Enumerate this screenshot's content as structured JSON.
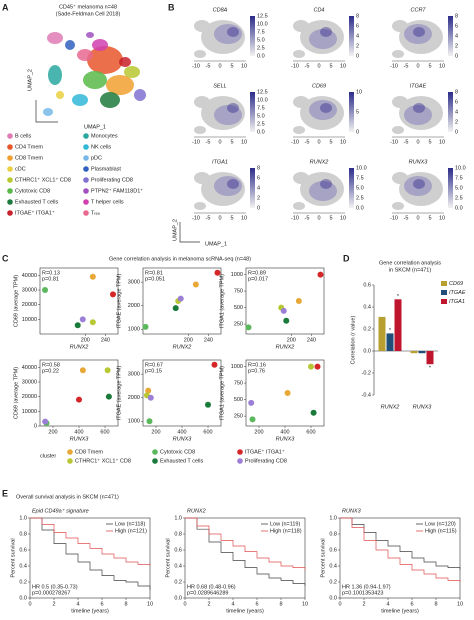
{
  "a": {
    "label": "A",
    "title": "CD45⁺ melanoma n=48",
    "subtitle": "(Sade-Feldman Cell 2018)",
    "xlabel": "UMAP_1",
    "ylabel": "UMAP_2",
    "legend": [
      {
        "name": "B cells",
        "color": "#e07bb5"
      },
      {
        "name": "CD4 Tmem",
        "color": "#e8562a"
      },
      {
        "name": "CD8 Tmem",
        "color": "#f0a030"
      },
      {
        "name": "cDC",
        "color": "#e8d040"
      },
      {
        "name": "CTHRC1⁺ XCL1⁺ CD8",
        "color": "#b8c830"
      },
      {
        "name": "Cytotoxic CD8",
        "color": "#58b848"
      },
      {
        "name": "Exhausted T cells",
        "color": "#1e7a3c"
      },
      {
        "name": "ITGAE⁺ ITGA1⁺",
        "color": "#c8202a"
      },
      {
        "name": "Monocytes",
        "color": "#2aa8a0"
      },
      {
        "name": "NK cells",
        "color": "#30b8d8"
      },
      {
        "name": "pDC",
        "color": "#78b8e8"
      },
      {
        "name": "Plasmablast",
        "color": "#3060c0"
      },
      {
        "name": "Proliferating CD8",
        "color": "#8070d0"
      },
      {
        "name": "PTPN2⁺ FAM118D1⁺",
        "color": "#a050c0"
      },
      {
        "name": "T helper cells",
        "color": "#d040b0"
      },
      {
        "name": "Tᵣₑ₉",
        "color": "#e86890"
      }
    ]
  },
  "b": {
    "label": "B",
    "xticks": [
      "-10",
      "-5",
      "0",
      "5",
      "10"
    ],
    "xlabel": "UMAP_1",
    "ylabel": "UMAP_2",
    "genes": [
      {
        "name": "CD8A",
        "colorbar": [
          "12.5",
          "10.0",
          "7.5",
          "5.0",
          "2.5",
          "0.0"
        ]
      },
      {
        "name": "CD4",
        "colorbar": [
          "8",
          "6",
          "4",
          "2",
          "0"
        ]
      },
      {
        "name": "CCR7",
        "colorbar": [
          "8",
          "6",
          "4",
          "2",
          "0"
        ]
      },
      {
        "name": "SELL",
        "colorbar": [
          "12.5",
          "10.0",
          "7.5",
          "5.0",
          "2.5",
          "0.0"
        ]
      },
      {
        "name": "CD69",
        "colorbar": [
          "10",
          "5",
          "0"
        ]
      },
      {
        "name": "ITGAE",
        "colorbar": [
          "8",
          "6",
          "4",
          "2",
          "0"
        ]
      },
      {
        "name": "ITGA1",
        "colorbar": [
          "8",
          "6",
          "4",
          "2",
          "0"
        ]
      },
      {
        "name": "RUNX2",
        "colorbar": [
          "10.0",
          "7.5",
          "5.0",
          "2.5",
          "0.0"
        ]
      },
      {
        "name": "RUNX3",
        "colorbar": [
          "10.0",
          "7.5",
          "5.0",
          "2.5",
          "0.0"
        ]
      }
    ]
  },
  "c": {
    "label": "C",
    "title": "Gene correlation analysis in melanoma scRNA-seq (n=48)",
    "legend_title": "cluster",
    "legend": [
      {
        "name": "CD8 Tmem",
        "color": "#e8a838"
      },
      {
        "name": "CTHRC1⁺ XCL1⁺ CD8",
        "color": "#b8c834"
      },
      {
        "name": "Cytotoxic CD8",
        "color": "#5cb85c"
      },
      {
        "name": "Exhausted T cells",
        "color": "#1a7a3a"
      },
      {
        "name": "ITGAE⁺ ITGA1⁺",
        "color": "#d62728"
      },
      {
        "name": "Proliferating CD8",
        "color": "#9b7fd6"
      }
    ],
    "plots": [
      {
        "xlabel": "RUNX2",
        "ylabel": "CD69 (average TPM)",
        "stats": [
          "R=0.13",
          "p=0.81"
        ],
        "xlim": [
          110,
          265
        ],
        "xticks": [
          200,
          240
        ],
        "ylim": [
          0,
          45000
        ],
        "yticks": [
          10000,
          20000,
          30000,
          40000
        ],
        "x": [
          215,
          215,
          120,
          185,
          255,
          195
        ],
        "y": [
          39000,
          8000,
          30000,
          6000,
          27000,
          10000
        ]
      },
      {
        "xlabel": "RUNX2",
        "ylabel": "ITGAE (average TPM)",
        "stats": [
          "R=0.81",
          "p=0.051"
        ],
        "xlim": [
          110,
          265
        ],
        "xticks": [
          200,
          240
        ],
        "ylim": [
          800,
          3600
        ],
        "yticks": [
          1000,
          2000,
          3000
        ],
        "x": [
          215,
          180,
          115,
          175,
          258,
          185
        ],
        "y": [
          2900,
          2200,
          1100,
          1900,
          3400,
          2300
        ]
      },
      {
        "xlabel": "RUNX2",
        "ylabel": "ITGA1 (average TPM)",
        "stats": [
          "R=0.89",
          "p=0.017"
        ],
        "xlim": [
          110,
          265
        ],
        "xticks": [
          200,
          240
        ],
        "ylim": [
          100,
          1100
        ],
        "yticks": [
          250,
          500,
          750,
          1000
        ],
        "x": [
          215,
          180,
          115,
          190,
          258,
          185
        ],
        "y": [
          600,
          500,
          200,
          300,
          1000,
          450
        ]
      },
      {
        "xlabel": "RUNX3",
        "ylabel": "CD69 (average TPM)",
        "stats": [
          "R=0.58",
          "p=0.22"
        ],
        "xlim": [
          100,
          700
        ],
        "xticks": [
          200,
          400,
          600
        ],
        "ylim": [
          0,
          45000
        ],
        "yticks": [
          0,
          10000,
          20000,
          30000,
          40000
        ],
        "x": [
          430,
          620,
          150,
          630,
          400,
          140
        ],
        "y": [
          38000,
          38000,
          2000,
          20000,
          18000,
          3000
        ]
      },
      {
        "xlabel": "RUNX3",
        "ylabel": "ITGAE (average TPM)",
        "stats": [
          "R=0.67",
          "p=0.15"
        ],
        "xlim": [
          100,
          700
        ],
        "xticks": [
          200,
          400,
          600
        ],
        "ylim": [
          800,
          3600
        ],
        "yticks": [
          1000,
          2000,
          3000
        ],
        "x": [
          140,
          130,
          150,
          600,
          650,
          160
        ],
        "y": [
          2300,
          2100,
          1000,
          1700,
          3400,
          2000
        ]
      },
      {
        "xlabel": "RUNX3",
        "ylabel": "ITGA1 (average TPM)",
        "stats": [
          "R=0.16",
          "p=0.76"
        ],
        "xlim": [
          100,
          700
        ],
        "xticks": [
          200,
          400,
          600
        ],
        "ylim": [
          100,
          1100
        ],
        "yticks": [
          250,
          500,
          750,
          1000
        ],
        "x": [
          420,
          600,
          150,
          620,
          650,
          140
        ],
        "y": [
          600,
          1000,
          200,
          300,
          1000,
          450
        ]
      }
    ]
  },
  "d": {
    "label": "D",
    "title": [
      "Gene correlation analysis",
      "in SKCM (n=471)"
    ],
    "ylabel": "Correlation (r value)",
    "categories": [
      "RUNX2",
      "RUNX3"
    ],
    "ylim": [
      -0.4,
      0.6
    ],
    "yticks": [
      -0.4,
      -0.2,
      {
        "value": 0,
        "label": "0.0"
      },
      0.2,
      0.4,
      0.6
    ],
    "star": "*",
    "series": [
      {
        "name": "CD69",
        "color": "#b8a030",
        "values": [
          0.31,
          -0.02
        ]
      },
      {
        "name": "ITGAE",
        "color": "#1f4e79",
        "values": [
          0.16,
          -0.02
        ]
      },
      {
        "name": "ITGA1",
        "color": "#c0152f",
        "values": [
          0.47,
          -0.12
        ]
      }
    ]
  },
  "e": {
    "label": "E",
    "title": "Overall survival analysis in SKCM (n=471)",
    "xlabel": "timeline (years)",
    "ylabel": "Percent survival",
    "xlim": [
      0,
      10
    ],
    "xticks": [
      0,
      2,
      4,
      6,
      8,
      10
    ],
    "ylim": [
      0,
      1
    ],
    "yticks": [
      {
        "value": 0,
        "label": "0.0"
      },
      0.2,
      0.4,
      0.6,
      0.8,
      {
        "value": 1,
        "label": "1.0"
      }
    ],
    "x": [
      0,
      1,
      2,
      3,
      4,
      5,
      6,
      7,
      8,
      9,
      10
    ],
    "plots": [
      {
        "title": "Epid CD49a⁺ signature",
        "hr": "HR 0.5 (0.35-0.73)",
        "p": "p=0.000278267",
        "series": [
          {
            "name": "Low (n=118)",
            "color": "#444444",
            "values": [
              1,
              0.85,
              0.68,
              0.55,
              0.45,
              0.35,
              0.28,
              0.22,
              0.2,
              0.15,
              0.1
            ]
          },
          {
            "name": "High (n=121)",
            "color": "#e05050",
            "values": [
              1,
              0.92,
              0.82,
              0.75,
              0.68,
              0.62,
              0.55,
              0.5,
              0.45,
              0.42,
              0.4
            ]
          }
        ]
      },
      {
        "title": "RUNX2",
        "hr": "HR 0.68 (0.48-0.96)",
        "p": "p=0.0289646289",
        "series": [
          {
            "name": "Low (n=119)",
            "color": "#444444",
            "values": [
              1,
              0.86,
              0.7,
              0.57,
              0.47,
              0.38,
              0.3,
              0.25,
              0.22,
              0.18,
              0.15
            ]
          },
          {
            "name": "High (n=118)",
            "color": "#e05050",
            "values": [
              1,
              0.9,
              0.8,
              0.72,
              0.65,
              0.58,
              0.5,
              0.45,
              0.4,
              0.38,
              0.35
            ]
          }
        ]
      },
      {
        "title": "RUNX3",
        "hr": "HR 1.36 (0.94-1.97)",
        "p": "p=0.1001353423",
        "series": [
          {
            "name": "Low (n=120)",
            "color": "#444444",
            "values": [
              1,
              0.92,
              0.82,
              0.72,
              0.65,
              0.58,
              0.5,
              0.45,
              0.4,
              0.38,
              0.35
            ]
          },
          {
            "name": "High (n=115)",
            "color": "#e05050",
            "values": [
              1,
              0.88,
              0.72,
              0.6,
              0.5,
              0.42,
              0.35,
              0.3,
              0.25,
              0.22,
              0.2
            ]
          }
        ]
      }
    ]
  }
}
